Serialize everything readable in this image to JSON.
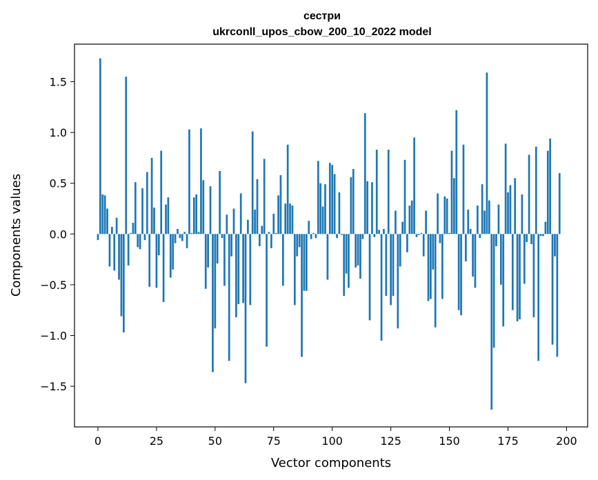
{
  "chart_data": {
    "type": "bar",
    "title": "сестри",
    "subtitle": "ukrconll_upos_cbow_200_10_2022 model",
    "xlabel": "Vector components",
    "ylabel": "Components values",
    "xlim": [
      -10,
      209
    ],
    "ylim": [
      -1.9,
      1.87
    ],
    "x_ticks": [
      0,
      25,
      50,
      75,
      100,
      125,
      150,
      175,
      200
    ],
    "x_tick_labels": [
      "0",
      "25",
      "50",
      "75",
      "100",
      "125",
      "150",
      "175",
      "200"
    ],
    "y_ticks": [
      -1.5,
      -1.0,
      -0.5,
      0.0,
      0.5,
      1.0,
      1.5
    ],
    "y_tick_labels": [
      "−1.5",
      "−1.0",
      "−0.5",
      "0.0",
      "0.5",
      "1.0",
      "1.5"
    ],
    "grid": false,
    "legend": "none",
    "bar_color": "#1f77b4",
    "values": [
      -0.06,
      1.73,
      0.39,
      0.38,
      0.25,
      -0.32,
      0.07,
      -0.36,
      0.16,
      -0.45,
      -0.81,
      -0.97,
      1.55,
      -0.31,
      0.01,
      0.11,
      0.51,
      -0.13,
      -0.15,
      0.45,
      -0.06,
      0.61,
      -0.52,
      0.75,
      0.26,
      -0.53,
      -0.21,
      0.82,
      -0.67,
      0.29,
      0.36,
      -0.43,
      -0.35,
      -0.09,
      0.05,
      -0.04,
      -0.07,
      0.02,
      -0.14,
      1.03,
      0.01,
      0.36,
      0.39,
      0.02,
      1.04,
      0.53,
      -0.54,
      -0.33,
      0.47,
      -1.36,
      -0.93,
      -0.29,
      0.62,
      -0.04,
      -0.51,
      0.19,
      -1.25,
      -0.22,
      0.25,
      -0.82,
      -0.69,
      0.4,
      -0.68,
      -1.47,
      0.14,
      -0.7,
      1.01,
      0.24,
      0.54,
      -0.12,
      0.08,
      0.74,
      -1.11,
      0.02,
      -0.14,
      0.2,
      0.01,
      0.38,
      0.58,
      -0.51,
      0.3,
      0.88,
      0.3,
      0.28,
      -0.7,
      -0.22,
      -0.13,
      -1.21,
      -0.56,
      -0.56,
      0.13,
      -0.05,
      0.01,
      -0.04,
      0.72,
      0.5,
      0.27,
      0.49,
      -0.45,
      0.7,
      0.68,
      0.59,
      -0.04,
      0.41,
      -0.01,
      -0.61,
      -0.39,
      -0.53,
      0.56,
      0.64,
      -0.33,
      -0.31,
      -0.44,
      -0.05,
      1.19,
      0.52,
      -0.85,
      0.51,
      -0.03,
      0.83,
      0.04,
      -1.05,
      0.05,
      -0.61,
      0.83,
      -0.7,
      -0.61,
      0.23,
      -0.93,
      -0.32,
      0.12,
      0.73,
      -0.18,
      0.28,
      0.33,
      0.95,
      -0.03,
      -0.01,
      0.01,
      -0.22,
      0.23,
      -0.66,
      -0.64,
      -0.35,
      -0.92,
      0.4,
      -0.09,
      -0.64,
      0.37,
      0.35,
      0.01,
      0.82,
      0.55,
      1.22,
      -0.75,
      -0.8,
      0.88,
      -0.27,
      0.24,
      0.05,
      -0.42,
      -0.53,
      0.28,
      -0.04,
      0.49,
      0.23,
      1.59,
      0.33,
      -1.73,
      -1.12,
      -0.12,
      0.29,
      -0.5,
      -0.91,
      0.89,
      0.41,
      0.48,
      -0.75,
      0.55,
      -0.86,
      -0.84,
      0.39,
      -0.49,
      -0.08,
      0.78,
      -0.1,
      -0.82,
      0.86,
      -1.25,
      -0.02,
      -0.02,
      0.12,
      0.82,
      0.94,
      -1.09,
      -0.22,
      -1.21,
      0.6
    ]
  }
}
